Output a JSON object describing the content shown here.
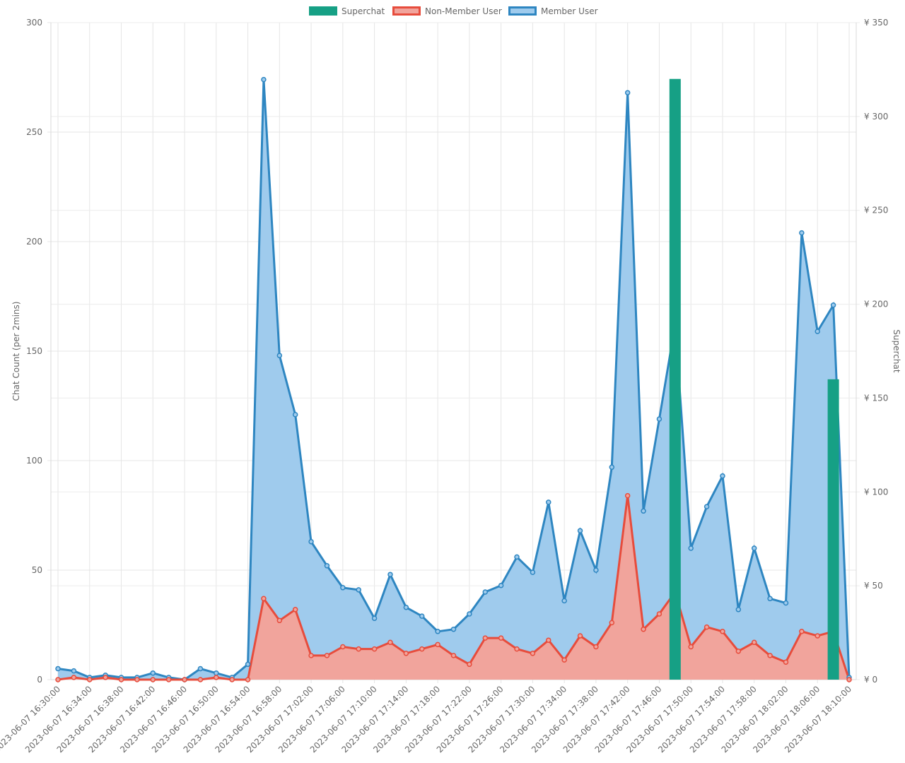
{
  "chart_data": {
    "type": "line",
    "x": [
      "2023-06-07 16:30:00",
      "2023-06-07 16:32:00",
      "2023-06-07 16:34:00",
      "2023-06-07 16:36:00",
      "2023-06-07 16:38:00",
      "2023-06-07 16:40:00",
      "2023-06-07 16:42:00",
      "2023-06-07 16:44:00",
      "2023-06-07 16:46:00",
      "2023-06-07 16:48:00",
      "2023-06-07 16:50:00",
      "2023-06-07 16:52:00",
      "2023-06-07 16:54:00",
      "2023-06-07 16:56:00",
      "2023-06-07 16:58:00",
      "2023-06-07 17:00:00",
      "2023-06-07 17:02:00",
      "2023-06-07 17:04:00",
      "2023-06-07 17:06:00",
      "2023-06-07 17:08:00",
      "2023-06-07 17:10:00",
      "2023-06-07 17:12:00",
      "2023-06-07 17:14:00",
      "2023-06-07 17:16:00",
      "2023-06-07 17:18:00",
      "2023-06-07 17:20:00",
      "2023-06-07 17:22:00",
      "2023-06-07 17:24:00",
      "2023-06-07 17:26:00",
      "2023-06-07 17:28:00",
      "2023-06-07 17:30:00",
      "2023-06-07 17:32:00",
      "2023-06-07 17:34:00",
      "2023-06-07 17:36:00",
      "2023-06-07 17:38:00",
      "2023-06-07 17:40:00",
      "2023-06-07 17:42:00",
      "2023-06-07 17:44:00",
      "2023-06-07 17:46:00",
      "2023-06-07 17:48:00",
      "2023-06-07 17:50:00",
      "2023-06-07 17:52:00",
      "2023-06-07 17:54:00",
      "2023-06-07 17:56:00",
      "2023-06-07 17:58:00",
      "2023-06-07 18:00:00",
      "2023-06-07 18:02:00",
      "2023-06-07 18:04:00",
      "2023-06-07 18:06:00",
      "2023-06-07 18:08:00",
      "2023-06-07 18:10:00"
    ],
    "x_tick_labels": [
      "2023-06-07 16:30:00",
      "2023-06-07 16:34:00",
      "2023-06-07 16:38:00",
      "2023-06-07 16:42:00",
      "2023-06-07 16:46:00",
      "2023-06-07 16:50:00",
      "2023-06-07 16:54:00",
      "2023-06-07 16:58:00",
      "2023-06-07 17:02:00",
      "2023-06-07 17:06:00",
      "2023-06-07 17:10:00",
      "2023-06-07 17:14:00",
      "2023-06-07 17:18:00",
      "2023-06-07 17:22:00",
      "2023-06-07 17:26:00",
      "2023-06-07 17:30:00",
      "2023-06-07 17:34:00",
      "2023-06-07 17:38:00",
      "2023-06-07 17:42:00",
      "2023-06-07 17:46:00",
      "2023-06-07 17:50:00",
      "2023-06-07 17:54:00",
      "2023-06-07 17:58:00",
      "2023-06-07 18:02:00",
      "2023-06-07 18:06:00",
      "2023-06-07 18:10:00"
    ],
    "series": [
      {
        "name": "Superchat",
        "type": "bar",
        "axis": "right",
        "color": "#16a085",
        "values": [
          0,
          0,
          0,
          0,
          0,
          0,
          0,
          0,
          0,
          0,
          0,
          0,
          0,
          0,
          0,
          0,
          0,
          0,
          0,
          0,
          0,
          0,
          0,
          0,
          0,
          0,
          0,
          0,
          0,
          0,
          0,
          0,
          0,
          0,
          0,
          0,
          0,
          0,
          0,
          320,
          0,
          0,
          0,
          0,
          0,
          0,
          0,
          0,
          0,
          160,
          0
        ]
      },
      {
        "name": "Non-Member User",
        "type": "area",
        "axis": "left",
        "color": "#e74c3c",
        "fill": "#f1a49c",
        "values": [
          0,
          1,
          0,
          1,
          0,
          0,
          0,
          0,
          0,
          0,
          1,
          0,
          0,
          37,
          27,
          32,
          11,
          11,
          15,
          14,
          14,
          17,
          12,
          14,
          16,
          11,
          7,
          19,
          19,
          14,
          12,
          18,
          9,
          20,
          15,
          26,
          84,
          23,
          30,
          40,
          15,
          24,
          22,
          13,
          17,
          11,
          8,
          22,
          20,
          22,
          0
        ]
      },
      {
        "name": "Member User",
        "type": "area",
        "axis": "left",
        "color": "#2e86c1",
        "fill": "#9fcbed",
        "values": [
          5,
          4,
          1,
          2,
          1,
          1,
          3,
          1,
          0,
          5,
          3,
          1,
          7,
          274,
          148,
          121,
          63,
          52,
          42,
          41,
          28,
          48,
          33,
          29,
          22,
          23,
          30,
          40,
          43,
          56,
          49,
          81,
          36,
          68,
          50,
          97,
          268,
          77,
          119,
          162,
          60,
          79,
          93,
          32,
          60,
          37,
          35,
          204,
          159,
          171,
          1
        ]
      }
    ],
    "y_left": {
      "label": "Chat Count (per 2mins)",
      "ylim": [
        0,
        300
      ],
      "ticks": [
        "0",
        "50",
        "100",
        "150",
        "200",
        "250",
        "300"
      ]
    },
    "y_right": {
      "label": "Superchat",
      "ylim": [
        0,
        350
      ],
      "ticks": [
        "¥ 0",
        "¥ 50",
        "¥ 100",
        "¥ 150",
        "¥ 200",
        "¥ 250",
        "¥ 300",
        "¥ 350"
      ]
    },
    "legend": {
      "position": "top-center",
      "items": [
        "Superchat",
        "Non-Member User",
        "Member User"
      ]
    },
    "grid": true
  }
}
